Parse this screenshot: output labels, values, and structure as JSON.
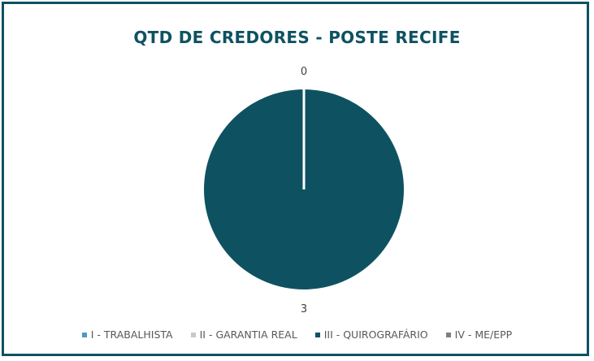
{
  "chart_data": {
    "type": "pie",
    "title": "QTD DE CREDORES - POSTE RECIFE",
    "categories": [
      "I - TRABALHISTA",
      "II - GARANTIA REAL",
      "III - QUIROGRAFÁRIO",
      "IV - ME/EPP"
    ],
    "values": [
      0,
      0,
      3,
      0
    ],
    "data_labels": [
      {
        "category": "I - TRABALHISTA",
        "text": "0"
      },
      {
        "category": "III - QUIROGRAFÁRIO",
        "text": "3"
      }
    ],
    "colors": [
      "#4a9bc4",
      "#c8c8c8",
      "#0e5262",
      "#7f7f7f"
    ],
    "legend_position": "bottom"
  }
}
